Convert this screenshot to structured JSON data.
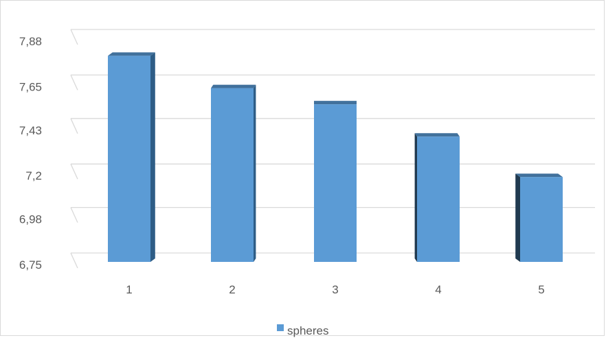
{
  "chart_data": {
    "type": "bar",
    "style": "3d-column",
    "categories": [
      "1",
      "2",
      "3",
      "4",
      "5"
    ],
    "series": [
      {
        "name": "spheres",
        "values": [
          7.77,
          7.61,
          7.53,
          7.37,
          7.17
        ]
      }
    ],
    "yticks": [
      "6,75",
      "6,98",
      "7,2",
      "7,43",
      "7,65",
      "7,88"
    ],
    "ytick_values": [
      6.75,
      6.98,
      7.2,
      7.43,
      7.65,
      7.88
    ],
    "ylim": [
      6.75,
      7.88
    ],
    "grid": true,
    "legend_position": "bottom",
    "colors": {
      "bar_front": "#5b9bd5",
      "bar_top": "#41719c",
      "bar_side": "#2e5d86",
      "bar_side_dark": "#203a50",
      "gridline": "#d9d9d9",
      "text": "#595959"
    }
  }
}
